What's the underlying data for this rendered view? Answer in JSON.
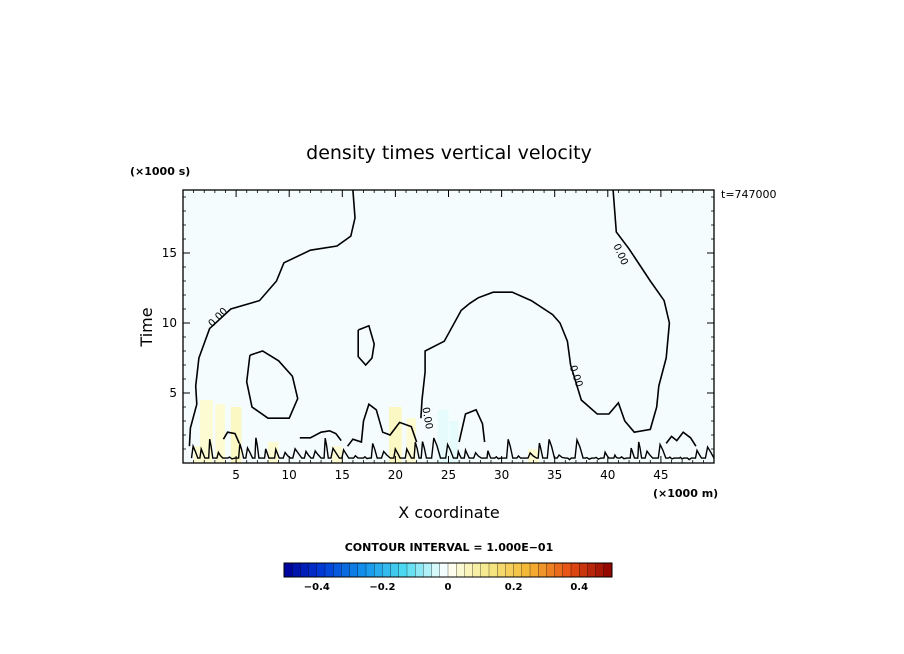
{
  "chart_data": {
    "type": "heatmap",
    "title": "density times vertical velocity",
    "xlabel": "X coordinate",
    "ylabel": "Time",
    "x_unit": "(×1000 m)",
    "y_unit": "(×1000 s)",
    "time_stamp": "t=747000",
    "xlim": [
      0,
      50
    ],
    "ylim": [
      0,
      19.5
    ],
    "x_ticks": [
      5,
      10,
      15,
      20,
      25,
      30,
      35,
      40,
      45
    ],
    "y_ticks": [
      5,
      10,
      15
    ],
    "contour_interval_text": "CONTOUR INTERVAL = 1.000E−01",
    "contour_label": "0.00",
    "colorbar": {
      "range": [
        -0.5,
        0.5
      ],
      "tick_values": [
        -0.4,
        -0.2,
        0,
        0.2,
        0.4
      ],
      "tick_labels": [
        "−0.4",
        "−0.2",
        "0",
        "0.2",
        "0.4"
      ]
    },
    "contours": [
      {
        "level": 0,
        "points": [
          [
            16,
            19.5
          ],
          [
            16.2,
            17.5
          ],
          [
            15.8,
            16.2
          ],
          [
            14.5,
            15.5
          ],
          [
            12,
            15.2
          ],
          [
            9.5,
            14.3
          ],
          [
            8.8,
            13
          ],
          [
            7.2,
            11.6
          ],
          [
            4.5,
            11
          ],
          [
            2.5,
            9.6
          ],
          [
            1.5,
            7.5
          ],
          [
            1.2,
            5.5
          ],
          [
            1.3,
            4.2
          ],
          [
            0.7,
            2.5
          ],
          [
            0.6,
            1.2
          ]
        ]
      },
      {
        "level": 0,
        "points": [
          [
            6.3,
            7.7
          ],
          [
            7.5,
            8
          ],
          [
            9,
            7.3
          ],
          [
            10.3,
            6.2
          ],
          [
            10.8,
            4.6
          ],
          [
            10,
            3.2
          ],
          [
            8,
            3.2
          ],
          [
            6.5,
            4
          ],
          [
            6,
            5.8
          ],
          [
            6.3,
            7.7
          ]
        ]
      },
      {
        "level": 0,
        "points": [
          [
            16.5,
            9.5
          ],
          [
            17.5,
            9.8
          ],
          [
            18,
            8.5
          ],
          [
            17.8,
            7.5
          ],
          [
            17.2,
            7
          ],
          [
            16.5,
            7.6
          ],
          [
            16.5,
            9.5
          ]
        ]
      },
      {
        "level": 0,
        "points": [
          [
            40.5,
            19.5
          ],
          [
            40.8,
            16.5
          ],
          [
            42,
            15.3
          ],
          [
            44,
            13
          ],
          [
            45.3,
            11.6
          ],
          [
            45.8,
            10
          ],
          [
            45.5,
            7.5
          ],
          [
            44.8,
            5.5
          ],
          [
            44.6,
            4
          ],
          [
            44,
            2.4
          ],
          [
            42.5,
            2.2
          ],
          [
            41.6,
            3
          ],
          [
            41,
            4.3
          ],
          [
            40.1,
            3.5
          ],
          [
            39,
            3.5
          ],
          [
            37.5,
            4.5
          ],
          [
            36.5,
            7
          ],
          [
            36.2,
            8.7
          ],
          [
            35.5,
            10
          ],
          [
            34.8,
            10.6
          ],
          [
            32.8,
            11.6
          ],
          [
            31,
            12.2
          ],
          [
            29.2,
            12.2
          ],
          [
            27.8,
            11.8
          ],
          [
            27,
            11.4
          ],
          [
            26.2,
            10.9
          ],
          [
            24.6,
            8.7
          ],
          [
            22.8,
            8
          ],
          [
            22.8,
            6.5
          ],
          [
            22.5,
            4.5
          ],
          [
            22.4,
            3.2
          ]
        ]
      },
      {
        "level": 0,
        "points": [
          [
            22,
            1.5
          ],
          [
            21.5,
            2.6
          ],
          [
            20.4,
            2.9
          ],
          [
            19.5,
            2
          ],
          [
            18.8,
            2.2
          ],
          [
            18.2,
            3.8
          ],
          [
            17.5,
            4.2
          ],
          [
            17,
            3
          ],
          [
            16.8,
            1.5
          ],
          [
            16,
            1.7
          ],
          [
            15.5,
            1.2
          ]
        ]
      },
      {
        "level": 0,
        "points": [
          [
            26,
            1.5
          ],
          [
            26.6,
            3.5
          ],
          [
            27.6,
            3.8
          ],
          [
            28.2,
            2.8
          ],
          [
            28.4,
            1.5
          ]
        ]
      },
      {
        "level": 0,
        "points": [
          [
            45.5,
            1.4
          ],
          [
            46,
            1.9
          ],
          [
            46.5,
            1.6
          ],
          [
            47.1,
            2.2
          ],
          [
            47.8,
            1.8
          ],
          [
            48.3,
            1.2
          ]
        ]
      },
      {
        "level": 0,
        "points": [
          [
            3.8,
            1.7
          ],
          [
            4.2,
            2.2
          ],
          [
            4.9,
            2.1
          ],
          [
            5.3,
            1.4
          ]
        ]
      },
      {
        "level": 0,
        "points": [
          [
            11,
            1.8
          ],
          [
            12,
            1.8
          ],
          [
            13,
            2.2
          ],
          [
            13.8,
            2.3
          ],
          [
            14.4,
            2.1
          ],
          [
            14.9,
            1.6
          ]
        ]
      }
    ]
  }
}
